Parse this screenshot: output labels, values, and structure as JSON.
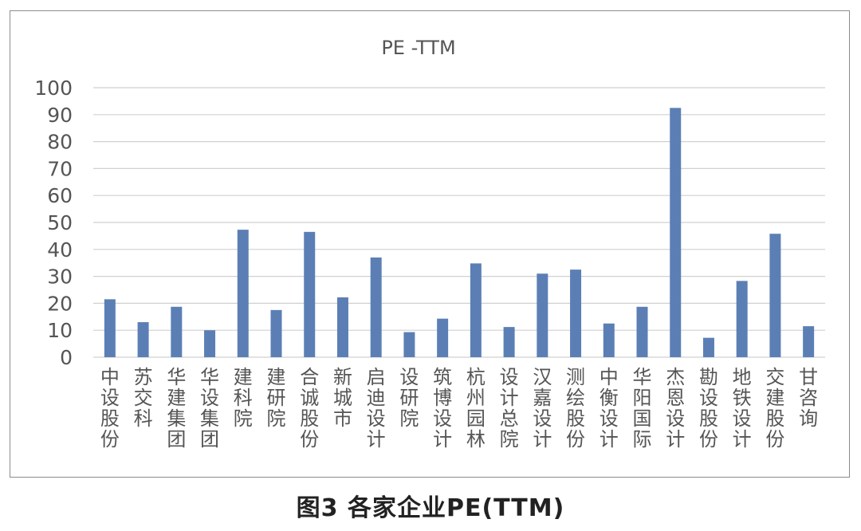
{
  "caption": "图3  各家企业PE(TTM)",
  "chart_data": {
    "type": "bar",
    "title": "PE -TTM",
    "xlabel": "",
    "ylabel": "",
    "ylim": [
      0,
      100
    ],
    "yticks": [
      0,
      10,
      20,
      30,
      40,
      50,
      60,
      70,
      80,
      90,
      100
    ],
    "grid": true,
    "legend": "none",
    "bar_color": "#5b7fb5",
    "grid_color": "#d0d0d0",
    "categories": [
      "中设股份",
      "苏交科",
      "华建集团",
      "华设集团",
      "建科院",
      "建研院",
      "合诚股份",
      "新城市",
      "启迪设计",
      "设研院",
      "筑博设计",
      "杭州园林",
      "设计总院",
      "汉嘉设计",
      "测绘股份",
      "中衡设计",
      "华阳国际",
      "杰恩设计",
      "勘设股份",
      "地铁设计",
      "交建股份",
      "甘咨询"
    ],
    "values": [
      21.5,
      13,
      18.7,
      10,
      47.3,
      17.5,
      46.5,
      22.2,
      37,
      9.3,
      14.3,
      34.8,
      11.2,
      31,
      32.5,
      12.5,
      18.7,
      92.5,
      7.2,
      28.3,
      45.8,
      11.5
    ]
  }
}
